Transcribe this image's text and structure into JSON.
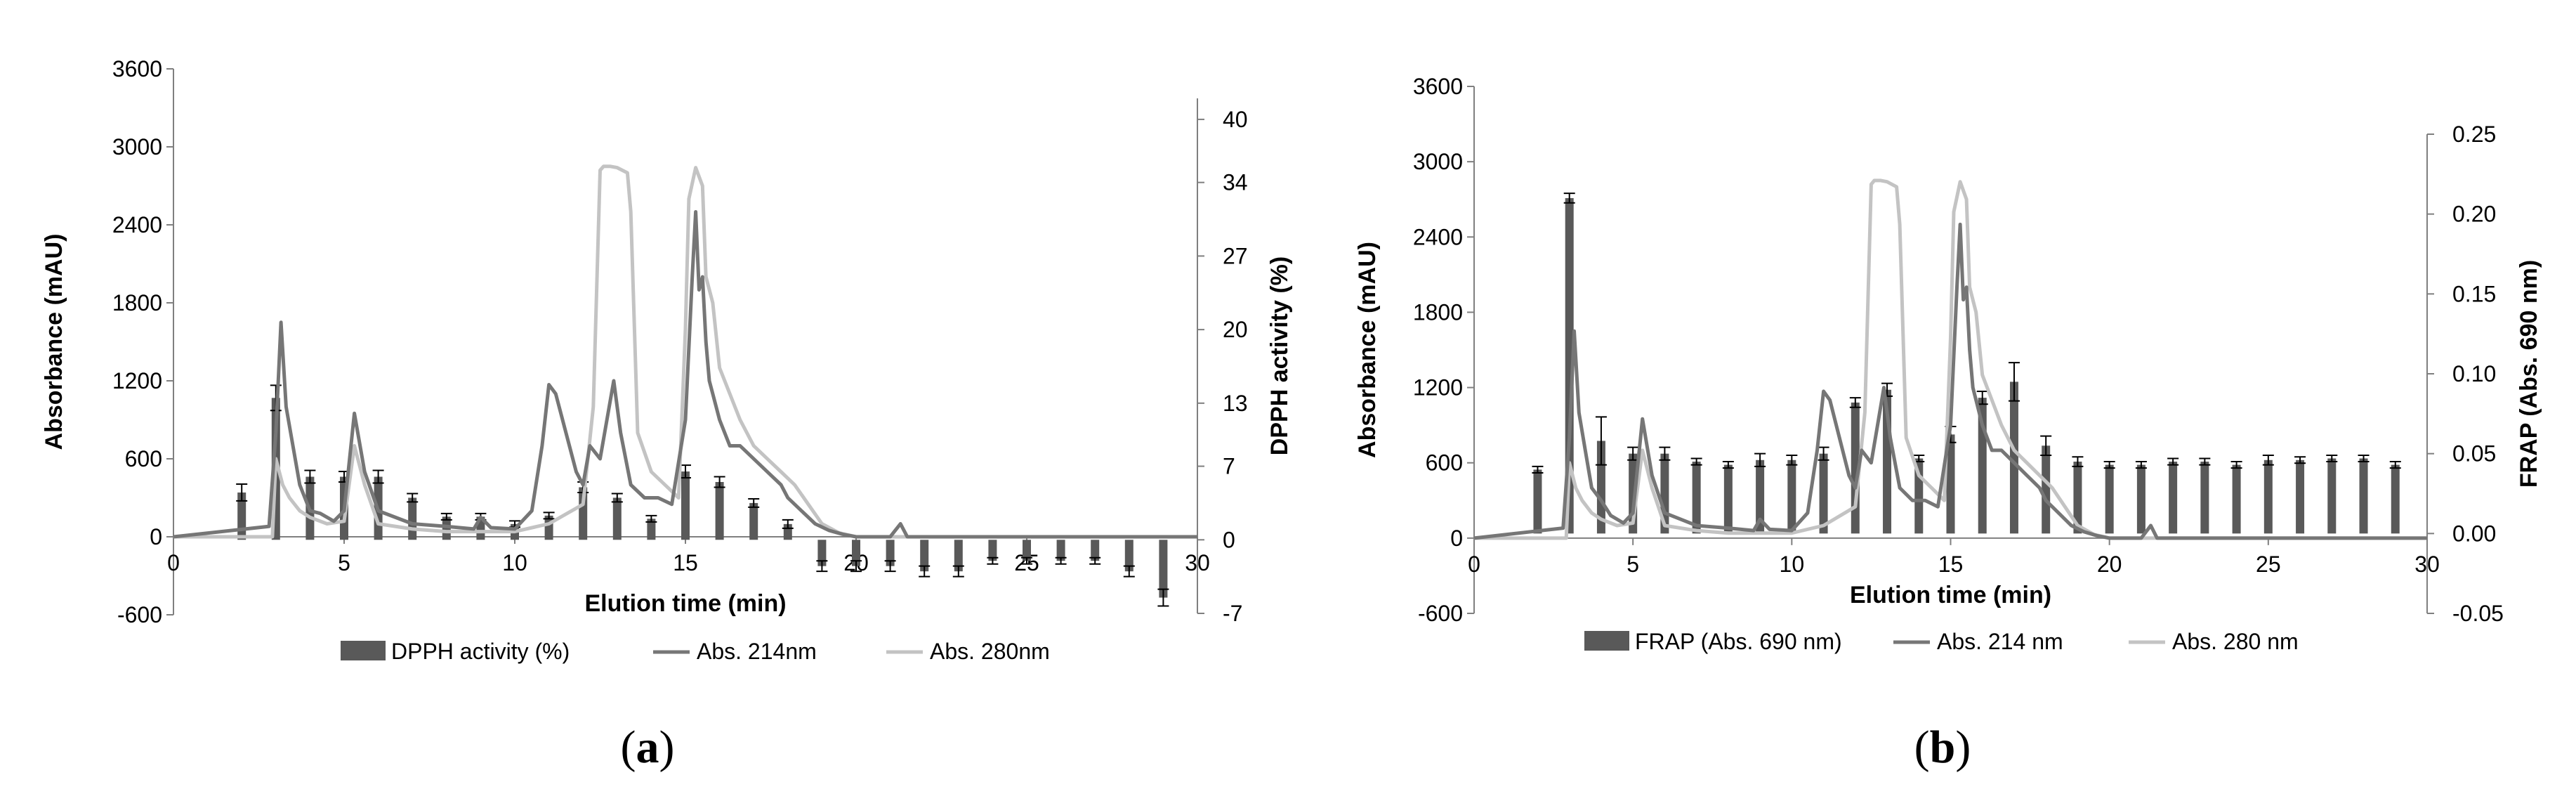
{
  "chart_data": [
    {
      "type": "bar",
      "caption_letter": "a",
      "xlabel": "Elution time (min)",
      "ylabel": "Absorbance (mAU)",
      "y2label": "DPPH activity (%)",
      "xlim": [
        0,
        30
      ],
      "ylim": [
        -600,
        3600
      ],
      "y2lim": [
        -7,
        42
      ],
      "xticks": [
        "0",
        "5",
        "10",
        "15",
        "20",
        "25",
        "30"
      ],
      "yticks": [
        "-600",
        "0",
        "600",
        "1200",
        "1800",
        "2400",
        "3000",
        "3600"
      ],
      "y2ticks": [
        "-7",
        "0",
        "7",
        "13",
        "20",
        "27",
        "34",
        "40"
      ],
      "legend": {
        "position": "bottom",
        "entries": [
          "DPPH activity (%)",
          "Abs. 214nm",
          "Abs. 280nm"
        ]
      },
      "bars": {
        "name": "DPPH activity (%)",
        "color": "#595959",
        "x": [
          2,
          3,
          4,
          5,
          6,
          7,
          8,
          9,
          10,
          11,
          12,
          13,
          14,
          15,
          16,
          17,
          18,
          19,
          20,
          21,
          22,
          23,
          24,
          25,
          26,
          27,
          28,
          29
        ],
        "values": [
          4.5,
          13.5,
          6,
          6,
          6,
          4,
          2.2,
          2.2,
          1.5,
          2.3,
          5,
          4,
          2,
          6.5,
          5.5,
          3.5,
          1.5,
          -2.5,
          -2.5,
          -2.5,
          -3,
          -3,
          -2,
          -2,
          -2,
          -2,
          -3,
          -5.5
        ],
        "errors": [
          0.8,
          1.2,
          0.6,
          0.5,
          0.6,
          0.4,
          0.3,
          0.3,
          0.3,
          0.3,
          0.5,
          0.4,
          0.3,
          0.6,
          0.5,
          0.4,
          0.4,
          0.5,
          0.5,
          0.5,
          0.5,
          0.5,
          0.3,
          0.3,
          0.3,
          0.3,
          0.5,
          0.8
        ]
      },
      "series": [
        {
          "name": "Abs. 214nm",
          "color": "#767676",
          "x": [
            0,
            2.8,
            3.0,
            3.15,
            3.3,
            3.5,
            3.7,
            4.0,
            4.3,
            4.7,
            5.0,
            5.3,
            5.6,
            6.0,
            7.0,
            8.0,
            8.8,
            9.0,
            9.3,
            10.0,
            10.5,
            10.8,
            11.0,
            11.2,
            11.5,
            11.8,
            12.0,
            12.2,
            12.5,
            12.7,
            12.9,
            13.1,
            13.4,
            13.8,
            14.2,
            14.6,
            15.0,
            15.2,
            15.3,
            15.4,
            15.5,
            15.6,
            15.7,
            15.8,
            16.0,
            16.3,
            16.6,
            17.0,
            17.4,
            17.8,
            18.0,
            18.4,
            18.8,
            19.2,
            19.6,
            20.0,
            21.0,
            21.3,
            21.5,
            22.0,
            30
          ],
          "values": [
            0,
            80,
            800,
            1650,
            1000,
            700,
            400,
            200,
            180,
            120,
            200,
            950,
            500,
            200,
            100,
            80,
            60,
            150,
            70,
            60,
            200,
            700,
            1170,
            1100,
            800,
            500,
            400,
            700,
            600,
            900,
            1200,
            800,
            400,
            300,
            300,
            250,
            900,
            2000,
            2500,
            1900,
            2000,
            1500,
            1200,
            1100,
            900,
            700,
            700,
            600,
            500,
            400,
            300,
            200,
            100,
            50,
            20,
            0,
            0,
            100,
            0,
            0,
            0
          ]
        },
        {
          "name": "Abs. 280nm",
          "color": "#c3c3c3",
          "x": [
            0,
            2.9,
            3.0,
            3.2,
            3.4,
            3.7,
            4.0,
            4.5,
            5.0,
            5.3,
            5.6,
            6.0,
            7.0,
            8.0,
            9.0,
            10.0,
            11.0,
            12.0,
            12.3,
            12.5,
            12.6,
            12.8,
            13.0,
            13.3,
            13.4,
            13.6,
            14.0,
            14.4,
            14.8,
            15.0,
            15.1,
            15.3,
            15.5,
            15.6,
            15.8,
            16.0,
            16.3,
            16.6,
            17.0,
            17.4,
            17.8,
            18.2,
            18.6,
            19.0,
            19.5,
            20.0,
            30
          ],
          "values": [
            0,
            0,
            600,
            400,
            300,
            200,
            150,
            100,
            120,
            700,
            400,
            100,
            60,
            40,
            40,
            40,
            100,
            250,
            1000,
            2820,
            2850,
            2850,
            2840,
            2800,
            2500,
            800,
            500,
            400,
            300,
            1600,
            2600,
            2840,
            2700,
            2000,
            1800,
            1300,
            1100,
            900,
            700,
            600,
            500,
            400,
            250,
            100,
            30,
            0,
            0
          ]
        }
      ]
    },
    {
      "type": "bar",
      "caption_letter": "b",
      "xlabel": "Elution time (min)",
      "ylabel": "Absorbance (mAU)",
      "y2label": "FRAP (Abs. 690 nm)",
      "xlim": [
        0,
        30
      ],
      "ylim": [
        -600,
        3600
      ],
      "y2lim": [
        -0.05,
        0.25
      ],
      "xticks": [
        "0",
        "5",
        "10",
        "15",
        "20",
        "25",
        "30"
      ],
      "yticks": [
        "-600",
        "0",
        "600",
        "1200",
        "1800",
        "2400",
        "3000",
        "3600"
      ],
      "y2ticks": [
        "-0.05",
        "0.00",
        "0.05",
        "0.10",
        "0.15",
        "0.20",
        "0.25"
      ],
      "legend": {
        "position": "bottom",
        "entries": [
          "FRAP (Abs. 690 nm)",
          "Abs. 214 nm",
          "Abs. 280 nm"
        ]
      },
      "bars": {
        "name": "FRAP (Abs. 690 nm)",
        "color": "#595959",
        "x": [
          2,
          3,
          4,
          5,
          6,
          7,
          8,
          9,
          10,
          11,
          12,
          13,
          14,
          15,
          16,
          17,
          18,
          19,
          20,
          21,
          22,
          23,
          24,
          25,
          26,
          27,
          28,
          29
        ],
        "values": [
          0.04,
          0.21,
          0.058,
          0.05,
          0.05,
          0.045,
          0.043,
          0.046,
          0.046,
          0.05,
          0.082,
          0.09,
          0.047,
          0.062,
          0.085,
          0.095,
          0.055,
          0.045,
          0.043,
          0.043,
          0.045,
          0.045,
          0.043,
          0.046,
          0.046,
          0.047,
          0.047,
          0.043
        ],
        "errors": [
          0.002,
          0.003,
          0.015,
          0.004,
          0.004,
          0.002,
          0.002,
          0.004,
          0.003,
          0.004,
          0.003,
          0.004,
          0.002,
          0.005,
          0.004,
          0.012,
          0.006,
          0.003,
          0.002,
          0.002,
          0.002,
          0.002,
          0.002,
          0.003,
          0.002,
          0.002,
          0.002,
          0.002
        ]
      },
      "series": [
        {
          "name": "Abs. 214 nm",
          "color": "#767676",
          "x": [
            0,
            2.8,
            3.0,
            3.15,
            3.3,
            3.5,
            3.7,
            4.0,
            4.3,
            4.7,
            5.0,
            5.3,
            5.6,
            6.0,
            7.0,
            8.0,
            8.8,
            9.0,
            9.3,
            10.0,
            10.5,
            10.8,
            11.0,
            11.2,
            11.5,
            11.8,
            12.0,
            12.2,
            12.5,
            12.7,
            12.9,
            13.1,
            13.4,
            13.8,
            14.2,
            14.6,
            15.0,
            15.2,
            15.3,
            15.4,
            15.5,
            15.6,
            15.7,
            15.8,
            16.0,
            16.3,
            16.6,
            17.0,
            17.4,
            17.8,
            18.0,
            18.4,
            18.8,
            19.2,
            19.6,
            20.0,
            21.0,
            21.3,
            21.5,
            22.0,
            30
          ],
          "values": [
            0,
            80,
            800,
            1650,
            1000,
            700,
            400,
            300,
            180,
            120,
            200,
            950,
            500,
            200,
            100,
            80,
            60,
            150,
            70,
            60,
            200,
            700,
            1170,
            1100,
            800,
            500,
            400,
            700,
            600,
            900,
            1200,
            800,
            400,
            300,
            300,
            250,
            900,
            2000,
            2500,
            1900,
            2000,
            1500,
            1200,
            1100,
            900,
            700,
            700,
            600,
            500,
            400,
            300,
            200,
            100,
            50,
            20,
            0,
            0,
            100,
            0,
            0,
            0
          ]
        },
        {
          "name": "Abs. 280 nm",
          "color": "#c3c3c3",
          "x": [
            0,
            2.9,
            3.0,
            3.2,
            3.4,
            3.7,
            4.0,
            4.5,
            5.0,
            5.3,
            5.6,
            6.0,
            7.0,
            8.0,
            9.0,
            10.0,
            11.0,
            12.0,
            12.3,
            12.5,
            12.6,
            12.8,
            13.0,
            13.3,
            13.4,
            13.6,
            14.0,
            14.4,
            14.8,
            15.0,
            15.1,
            15.3,
            15.5,
            15.6,
            15.8,
            16.0,
            16.3,
            16.6,
            17.0,
            17.4,
            17.8,
            18.2,
            18.6,
            19.0,
            19.5,
            20.0,
            30
          ],
          "values": [
            0,
            0,
            600,
            400,
            300,
            200,
            150,
            100,
            120,
            700,
            400,
            100,
            60,
            40,
            40,
            40,
            100,
            250,
            1000,
            2820,
            2850,
            2850,
            2840,
            2800,
            2500,
            800,
            500,
            400,
            300,
            1600,
            2600,
            2840,
            2700,
            2000,
            1800,
            1300,
            1100,
            900,
            700,
            600,
            500,
            400,
            250,
            100,
            30,
            0,
            0
          ]
        }
      ]
    }
  ]
}
